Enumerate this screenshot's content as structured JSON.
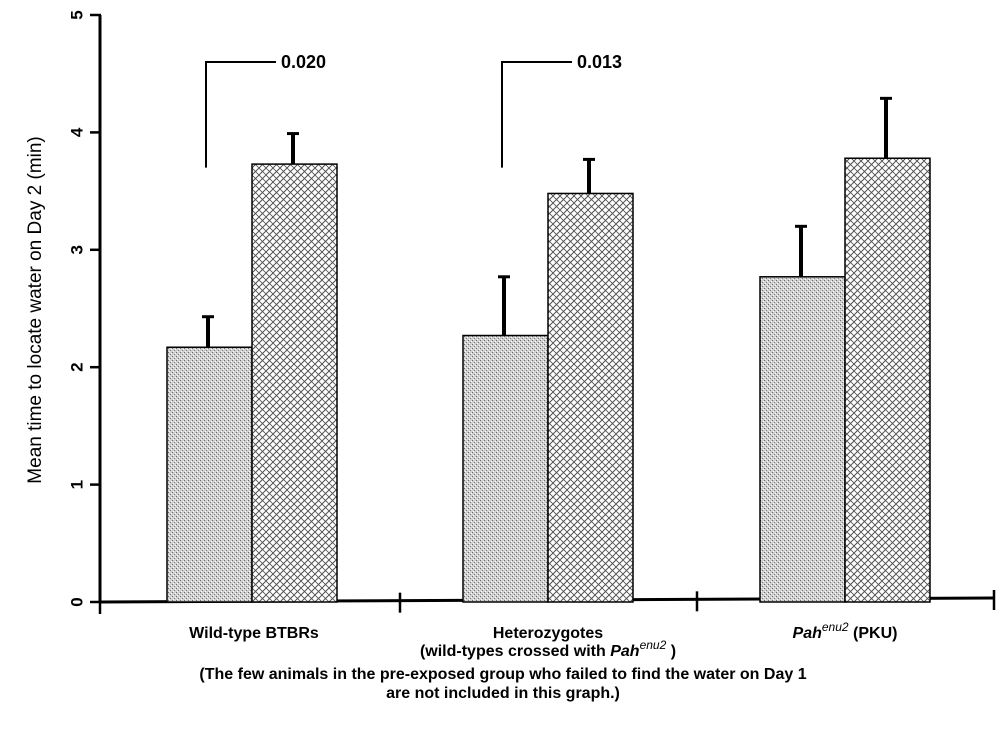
{
  "chart_data": {
    "type": "bar",
    "title": "",
    "ylabel": "Mean time to locate water on Day 2 (min)",
    "xlabel": "",
    "ylim": [
      0,
      5
    ],
    "yticks": [
      "0",
      "1",
      "2",
      "3",
      "4",
      "5"
    ],
    "grid": false,
    "legend": "none",
    "categories": [
      {
        "parts": [
          {
            "text": "Wild-type BTBRs"
          }
        ]
      },
      {
        "parts": [
          {
            "text": "Heterozygotes"
          }
        ],
        "line2": [
          {
            "text": "(wild-types crossed with "
          },
          {
            "text": "Pah",
            "italic": true
          },
          {
            "text": "enu2",
            "italic": true,
            "sup": true
          },
          {
            "text": " )"
          }
        ]
      },
      {
        "parts": [
          {
            "text": "Pah",
            "italic": true
          },
          {
            "text": "enu2",
            "italic": true,
            "sup": true
          },
          {
            "text": " (PKU)"
          }
        ]
      }
    ],
    "series": [
      {
        "values": [
          2.17,
          2.27,
          2.77
        ],
        "errors": [
          0.26,
          0.5,
          0.43
        ],
        "pattern": "stipple"
      },
      {
        "values": [
          3.73,
          3.48,
          3.78
        ],
        "errors": [
          0.26,
          0.29,
          0.51
        ],
        "pattern": "crosshatch"
      }
    ],
    "annotations": [
      {
        "category": 0,
        "label": "0.020",
        "bracket_top": 4.6,
        "left_bottom": 3.7
      },
      {
        "category": 1,
        "label": "0.013",
        "bracket_top": 4.6,
        "left_bottom": 3.7
      }
    ]
  },
  "footnote": {
    "line1": "(The few animals in the pre-exposed group who failed to find the water on Day 1",
    "line2": "are not included in this graph.)"
  }
}
